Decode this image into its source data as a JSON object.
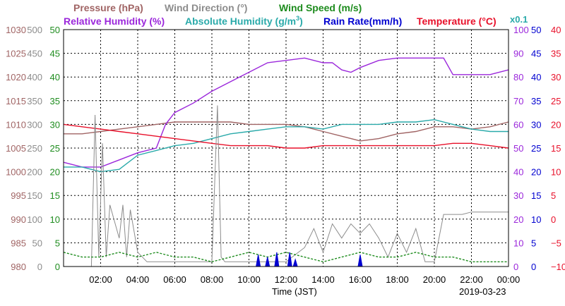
{
  "legend": {
    "pressure": "Pressure (hPa)",
    "wind_direction": "Wind Direction (°)",
    "wind_speed": "Wind Speed (m/s)",
    "relative_humidity": "Relative Humidity (%)",
    "absolute_humidity": "Absolute Humidity (g/m",
    "absolute_humidity_sup": "3",
    "absolute_humidity_close": ")",
    "rain_rate": "Rain Rate(mm/h)",
    "temperature": "Temperature (°C)",
    "rain_scale": "x0.1"
  },
  "x_axis_title": "Time (JST)",
  "date_label": "2019-03-23",
  "colors": {
    "pressure": "#a06464",
    "wind_direction": "#8c8c8c",
    "wind_speed": "#1e8c1e",
    "relative_humidity": "#9b27db",
    "absolute_humidity": "#2aaaaa",
    "rain_rate": "#0000d0",
    "temperature": "#e8102a"
  },
  "chart_data": {
    "type": "line",
    "x_range_hours": [
      0,
      24
    ],
    "x_ticks": [
      "02:00",
      "04:00",
      "06:00",
      "08:00",
      "10:00",
      "12:00",
      "14:00",
      "16:00",
      "18:00",
      "20:00",
      "22:00",
      "00:00"
    ],
    "axes": {
      "pressure": {
        "ticks": [
          "1030",
          "1025",
          "1020",
          "1015",
          "1010",
          "1005",
          "1000",
          "995",
          "990",
          "985",
          "980"
        ],
        "range": [
          980,
          1030
        ]
      },
      "wind_direction": {
        "ticks": [
          "500",
          "450",
          "400",
          "350",
          "300",
          "250",
          "200",
          "150",
          "100",
          "50",
          "0"
        ],
        "range": [
          0,
          500
        ]
      },
      "wind_speed": {
        "ticks": [
          "50",
          "45",
          "40",
          "35",
          "30",
          "25",
          "20",
          "15",
          "10",
          "5",
          "0"
        ],
        "range": [
          0,
          50
        ]
      },
      "relative_humidity": {
        "ticks": [
          "100",
          "90",
          "80",
          "70",
          "60",
          "50",
          "40",
          "30",
          "20",
          "10",
          "0"
        ],
        "range": [
          0,
          100
        ]
      },
      "rain_rate": {
        "ticks": [
          "50",
          "45",
          "40",
          "35",
          "30",
          "25",
          "20",
          "15",
          "10",
          "5",
          "0"
        ],
        "range": [
          0,
          50
        ]
      },
      "temperature": {
        "ticks": [
          "40",
          "35",
          "30",
          "25",
          "20",
          "15",
          "10",
          "5",
          "0",
          "−5",
          "−10"
        ],
        "range": [
          -10,
          40
        ]
      }
    },
    "grid": true,
    "series": [
      {
        "name": "Pressure (hPa)",
        "key": "pressure",
        "axis": "pressure",
        "x": [
          0,
          1,
          2,
          3,
          4,
          5,
          6,
          7,
          8,
          9,
          10,
          11,
          12,
          13,
          14,
          15,
          16,
          17,
          18,
          19,
          20,
          21,
          22,
          23,
          24
        ],
        "y": [
          1008,
          1008,
          1008.5,
          1009,
          1009.5,
          1010,
          1010.5,
          1010.5,
          1010.5,
          1010.5,
          1010,
          1010,
          1010,
          1009.5,
          1008.5,
          1007.5,
          1006.5,
          1007,
          1008,
          1008.5,
          1009.5,
          1009.5,
          1009,
          1009.5,
          1010.5
        ]
      },
      {
        "name": "Relative Humidity (%)",
        "key": "relative_humidity",
        "axis": "relative_humidity",
        "x": [
          0,
          1,
          2,
          3,
          4,
          5,
          5.5,
          6,
          7,
          8,
          9,
          10,
          11,
          12,
          13,
          14,
          14.5,
          15,
          15.5,
          16,
          17,
          18,
          19,
          20,
          20.5,
          21,
          22,
          23,
          24
        ],
        "y": [
          44,
          42,
          42,
          45,
          48,
          50,
          60,
          65,
          69,
          74,
          78,
          82,
          86,
          87,
          88,
          86,
          86,
          83,
          82,
          84,
          87,
          88,
          88,
          88,
          88,
          81,
          81,
          81,
          83
        ]
      },
      {
        "name": "Absolute Humidity (g/m3)",
        "key": "absolute_humidity",
        "axis": "relative_humidity",
        "x": [
          0,
          1,
          2,
          3,
          4,
          5,
          6,
          7,
          8,
          9,
          10,
          11,
          12,
          13,
          14,
          15,
          16,
          17,
          18,
          19,
          20,
          21,
          22,
          23,
          24
        ],
        "y": [
          42,
          42,
          40,
          41,
          47,
          49,
          51,
          52,
          54,
          56,
          57,
          58,
          59,
          59,
          58,
          60,
          60,
          60,
          61,
          61,
          62,
          60,
          58,
          57,
          57
        ]
      },
      {
        "name": "Temperature (°C)",
        "key": "temperature",
        "axis": "temperature",
        "x": [
          0,
          1,
          2,
          3,
          4,
          5,
          6,
          7,
          8,
          9,
          10,
          11,
          12,
          13,
          14,
          15,
          16,
          17,
          18,
          19,
          20,
          21,
          22,
          23,
          24
        ],
        "y": [
          20,
          19.5,
          19,
          18.5,
          18,
          17.5,
          17,
          16.5,
          16,
          15.5,
          15.5,
          15.5,
          15,
          15,
          15.5,
          15.5,
          15.5,
          15.5,
          15.5,
          15.5,
          15.5,
          16,
          16,
          15.5,
          15
        ]
      },
      {
        "name": "Wind Direction (°)",
        "key": "wind_direction",
        "axis": "wind_direction",
        "x": [
          0,
          1.5,
          1.7,
          1.9,
          2.1,
          2.3,
          2.5,
          3.0,
          3.2,
          3.4,
          3.6,
          4.0,
          4.5,
          5,
          6,
          7,
          8,
          8.3,
          8.5,
          8.7,
          9,
          10,
          11,
          12,
          13,
          13.5,
          14,
          14.5,
          15,
          15.5,
          16,
          16.5,
          17,
          17.5,
          18,
          18.5,
          19,
          19.5,
          20,
          20.5,
          21,
          21.5,
          22,
          23,
          24
        ],
        "y": [
          0,
          0,
          320,
          20,
          260,
          20,
          130,
          60,
          130,
          20,
          120,
          30,
          10,
          10,
          10,
          10,
          10,
          340,
          20,
          10,
          10,
          10,
          10,
          10,
          40,
          80,
          30,
          90,
          60,
          90,
          70,
          90,
          60,
          20,
          70,
          30,
          80,
          10,
          10,
          110,
          110,
          110,
          115,
          115,
          115
        ]
      },
      {
        "name": "Wind Speed (m/s)",
        "key": "wind_speed",
        "axis": "wind_speed",
        "x": [
          0,
          1,
          2,
          3,
          4,
          5,
          6,
          7,
          8,
          9,
          10,
          11,
          12,
          13,
          14,
          15,
          16,
          17,
          18,
          19,
          20,
          21,
          22,
          23,
          24
        ],
        "y": [
          3,
          2,
          2,
          3,
          2,
          3,
          2,
          2,
          1,
          2,
          3,
          2,
          3,
          2,
          1,
          2,
          3,
          2,
          2,
          3,
          2,
          2,
          1,
          1,
          1
        ]
      },
      {
        "name": "Rain Rate(mm/h)",
        "key": "rain_rate",
        "axis": "rain_rate",
        "x": [
          10.5,
          11.0,
          11.5,
          12.2,
          12.5,
          16.0
        ],
        "y": [
          2.5,
          2.0,
          3.0,
          3.0,
          1.5,
          2.5
        ]
      }
    ]
  }
}
